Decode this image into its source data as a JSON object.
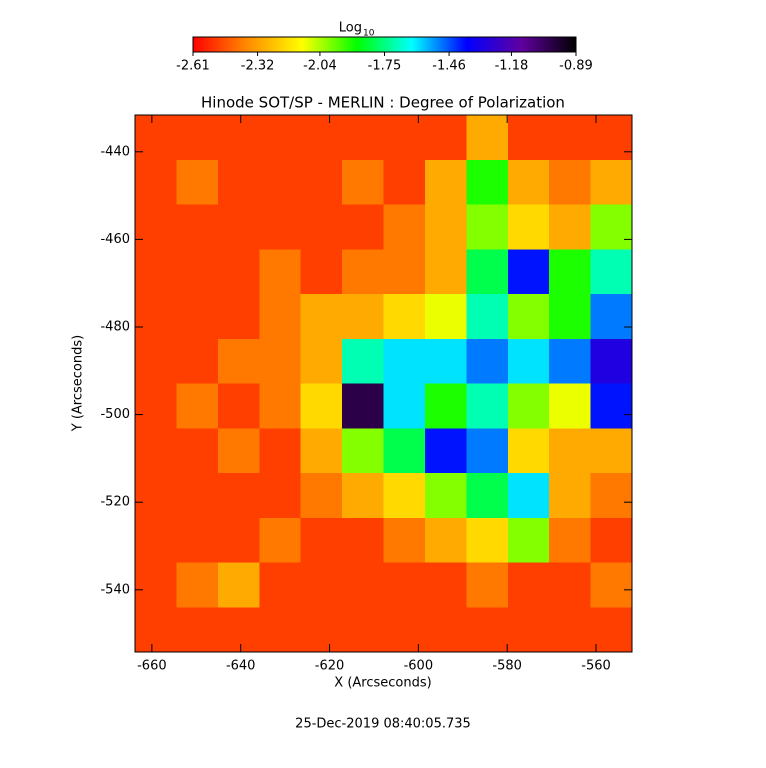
{
  "chart_data": {
    "type": "heatmap",
    "title": "Hinode SOT/SP - MERLIN : Degree of Polarization",
    "xlabel": "X (Arcseconds)",
    "ylabel": "Y (Arcseconds)",
    "footer": "25-Dec-2019 08:40:05.735",
    "colorbar_label": "Log",
    "colorbar_label_subscript": "10",
    "xlim": [
      -663.8,
      -551.9
    ],
    "ylim": [
      -554.2,
      -431.6
    ],
    "xticks": [
      -660,
      -640,
      -620,
      -600,
      -580,
      -560
    ],
    "yticks": [
      -440,
      -460,
      -480,
      -500,
      -520,
      -540
    ],
    "clim": [
      -2.61,
      -0.89
    ],
    "cticks": [
      -2.61,
      -2.32,
      -2.04,
      -1.75,
      -1.46,
      -1.18,
      -0.89
    ],
    "colormap": [
      "#ff0000",
      "#ff8c00",
      "#ffff00",
      "#00ff00",
      "#00ffff",
      "#0000ff",
      "#6000a0",
      "#000000"
    ],
    "z": [
      [
        -2.5,
        -2.5,
        -2.5,
        -2.5,
        -2.5,
        -2.5,
        -2.5,
        -2.5,
        -2.3,
        -2.5,
        -2.5,
        -2.5
      ],
      [
        -2.5,
        -2.4,
        -2.5,
        -2.5,
        -2.5,
        -2.4,
        -2.5,
        -2.3,
        -1.9,
        -2.3,
        -2.4,
        -2.3
      ],
      [
        -2.5,
        -2.5,
        -2.5,
        -2.5,
        -2.5,
        -2.5,
        -2.4,
        -2.3,
        -2.0,
        -2.2,
        -2.3,
        -2.0
      ],
      [
        -2.5,
        -2.5,
        -2.5,
        -2.4,
        -2.5,
        -2.4,
        -2.4,
        -2.3,
        -1.8,
        -1.4,
        -1.9,
        -1.7
      ],
      [
        -2.5,
        -2.5,
        -2.5,
        -2.4,
        -2.3,
        -2.3,
        -2.2,
        -2.1,
        -1.7,
        -2.0,
        -1.9,
        -1.5
      ],
      [
        -2.5,
        -2.5,
        -2.4,
        -2.4,
        -2.3,
        -1.7,
        -1.6,
        -1.6,
        -1.5,
        -1.6,
        -1.5,
        -1.3
      ],
      [
        -2.5,
        -2.4,
        -2.5,
        -2.4,
        -2.2,
        -1.0,
        -1.6,
        -1.9,
        -1.7,
        -2.0,
        -2.1,
        -1.4
      ],
      [
        -2.5,
        -2.5,
        -2.4,
        -2.5,
        -2.3,
        -2.0,
        -1.8,
        -1.4,
        -1.5,
        -2.2,
        -2.3,
        -2.3
      ],
      [
        -2.5,
        -2.5,
        -2.5,
        -2.5,
        -2.4,
        -2.3,
        -2.2,
        -2.0,
        -1.8,
        -1.6,
        -2.3,
        -2.4
      ],
      [
        -2.5,
        -2.5,
        -2.5,
        -2.4,
        -2.5,
        -2.5,
        -2.4,
        -2.3,
        -2.2,
        -2.0,
        -2.4,
        -2.5
      ],
      [
        -2.5,
        -2.4,
        -2.3,
        -2.5,
        -2.5,
        -2.5,
        -2.5,
        -2.5,
        -2.4,
        -2.5,
        -2.5,
        -2.4
      ],
      [
        -2.5,
        -2.5,
        -2.5,
        -2.5,
        -2.5,
        -2.5,
        -2.5,
        -2.5,
        -2.5,
        -2.5,
        -2.5,
        -2.5
      ]
    ]
  }
}
